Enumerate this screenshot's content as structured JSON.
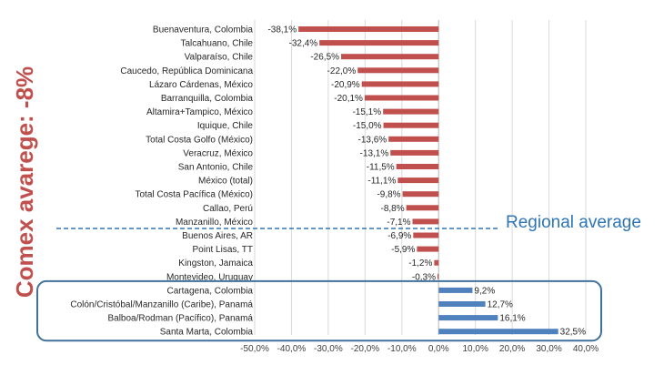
{
  "chart_data": {
    "type": "bar",
    "orientation": "horizontal",
    "categories": [
      "Buenaventura, Colombia",
      "Talcahuano, Chile",
      "Valparaíso, Chile",
      "Caucedo, República Dominicana",
      "Lázaro Cárdenas, México",
      "Barranquilla, Colombia",
      "Altamira+Tampico, México",
      "Iquique, Chile",
      "Total Costa Golfo (México)",
      "Veracruz, México",
      "San Antonio, Chile",
      "México (total)",
      "Total Costa Pacífica (México)",
      "Callao, Perú",
      "Manzanillo, México",
      "Buenos Aires, AR",
      "Point Lisas, TT",
      "Kingston, Jamaica",
      "Montevideo, Uruguay",
      "Cartagena, Colombia",
      "Colón/Cristóbal/Manzanillo (Caribe), Panamá",
      "Balboa/Rodman (Pacífico), Panamá",
      "Santa Marta, Colombia"
    ],
    "values": [
      -38.1,
      -32.4,
      -26.5,
      -22.0,
      -20.9,
      -20.1,
      -15.1,
      -15.0,
      -13.6,
      -13.1,
      -11.5,
      -11.1,
      -9.8,
      -8.8,
      -7.1,
      -6.9,
      -5.9,
      -1.2,
      -0.3,
      9.2,
      12.7,
      16.1,
      32.5
    ],
    "value_labels": [
      "-38,1%",
      "-32,4%",
      "-26,5%",
      "-22,0%",
      "-20,9%",
      "-20,1%",
      "-15,1%",
      "-15,0%",
      "-13,6%",
      "-13,1%",
      "-11,5%",
      "-11,1%",
      "-9,8%",
      "-8,8%",
      "-7,1%",
      "-6,9%",
      "-5,9%",
      "-1,2%",
      "-0,3%",
      "9,2%",
      "12,7%",
      "16,1%",
      "32,5%"
    ],
    "xlim": [
      -50,
      40
    ],
    "x_ticks": [
      -50,
      -40,
      -30,
      -20,
      -10,
      0,
      10,
      20,
      30,
      40
    ],
    "x_tick_labels": [
      "-50,0%",
      "-40,0%",
      "-30,0%",
      "-20,0%",
      "-10,0%",
      "0,0%",
      "10,0%",
      "20,0%",
      "30,0%",
      "40,0%"
    ],
    "grid": "vertical",
    "highlighted_group": [
      "Cartagena, Colombia",
      "Colón/Cristóbal/Manzanillo (Caribe), Panamá",
      "Balboa/Rodman (Pacífico), Panamá",
      "Santa Marta, Colombia"
    ],
    "reference_line_after": "Manzanillo, México",
    "reference_line_label": "Regional average",
    "side_annotation": "Comex avarege: -8%",
    "colors": {
      "negative": "#c0504d",
      "positive": "#4f81bd",
      "annotation": "#c0504d",
      "reference": "#2e75b6",
      "grid": "#d9d9d9",
      "group_box": "#41719c"
    }
  }
}
